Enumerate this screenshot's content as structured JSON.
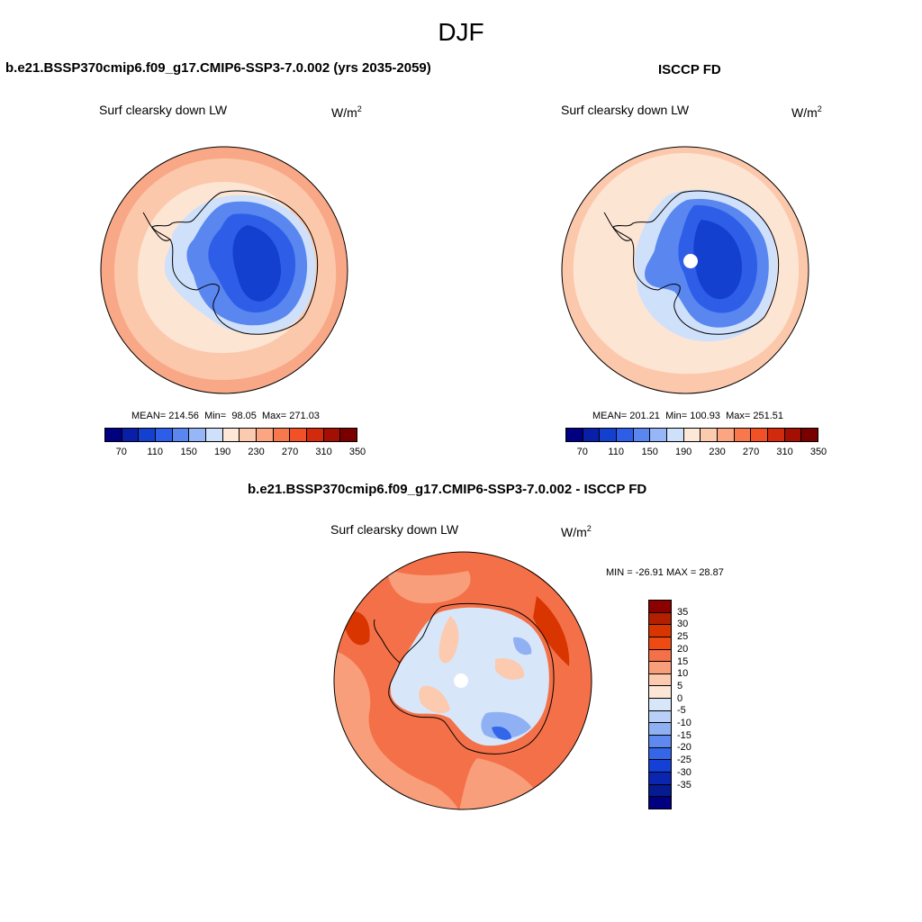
{
  "page": {
    "season": "DJF"
  },
  "panels": {
    "model": {
      "title": "b.e21.BSSP370cmip6.f09_g17.CMIP6-SSP3-7.0.002 (yrs 2035-2059)",
      "variable": "Surf clearsky down LW",
      "units_base": "W/m",
      "units_exp": "2",
      "mean_label": "MEAN=",
      "mean": "214.56",
      "min_label": "Min=",
      "min": "98.05",
      "max_label": "Max=",
      "max": "271.03"
    },
    "obs": {
      "title": "ISCCP FD",
      "variable": "Surf clearsky down LW",
      "units_base": "W/m",
      "units_exp": "2",
      "mean_label": "MEAN=",
      "mean": "201.21",
      "min_label": "Min=",
      "min": "100.93",
      "max_label": "Max=",
      "max": "251.51"
    },
    "diff": {
      "title": "b.e21.BSSP370cmip6.f09_g17.CMIP6-SSP3-7.0.002 - ISCCP FD",
      "variable": "Surf clearsky down LW",
      "units_base": "W/m",
      "units_exp": "2",
      "minmax_text": "MIN = -26.91 MAX =  28.87"
    }
  },
  "colorbars": {
    "absolute": {
      "colors": [
        "#000080",
        "#0a1fa8",
        "#1440d0",
        "#2e5ee8",
        "#5a86f0",
        "#96b6f7",
        "#cfe0fb",
        "#fde8d8",
        "#fccaaf",
        "#fba582",
        "#f8784e",
        "#f25027",
        "#d12a0c",
        "#a40f04",
        "#7a0000"
      ],
      "tick_labels": [
        "70",
        "110",
        "150",
        "190",
        "230",
        "270",
        "310",
        "350"
      ]
    },
    "difference": {
      "colors_top_to_bottom": [
        "#8b0000",
        "#b22000",
        "#d93500",
        "#f04a14",
        "#f47048",
        "#f99e7a",
        "#fccaae",
        "#fde6d6",
        "#d8e6fa",
        "#b8cff7",
        "#8fb1f4",
        "#5f89ef",
        "#3466ea",
        "#1440d7",
        "#0a26b0",
        "#061a92",
        "#000080"
      ],
      "tick_labels": [
        "35",
        "30",
        "25",
        "20",
        "15",
        "10",
        "5",
        "0",
        "-5",
        "-10",
        "-15",
        "-20",
        "-25",
        "-30",
        "-35"
      ]
    }
  },
  "maps": {
    "model_fields": {
      "ocean_outer": "#f8a886",
      "ocean_mid": "#fcc8ac",
      "ocean_inner": "#fde5d4",
      "coast_ring": "#cfe0fb",
      "ice_edge": "#5a86f0",
      "ice_mid": "#2e5ee8",
      "ice_core": "#1440d0"
    },
    "obs_fields": {
      "ocean_outer": "#fcc8ac",
      "ocean_inner": "#fde5d4",
      "coast_ring": "#cfe0fb",
      "ice_edge": "#5a86f0",
      "ice_mid": "#2e5ee8",
      "ice_core": "#1440d0",
      "pole_hole": "#ffffff"
    },
    "diff_fields": {
      "ocean_outer": "#f47048",
      "ocean_mid": "#f99e7a",
      "ocean_hot": "#d93500",
      "land_pale": "#d8e6fa",
      "land_warm": "#fccaae",
      "land_cool": "#8fb1f4",
      "land_blue": "#3466ea",
      "pole_hole": "#ffffff"
    }
  }
}
